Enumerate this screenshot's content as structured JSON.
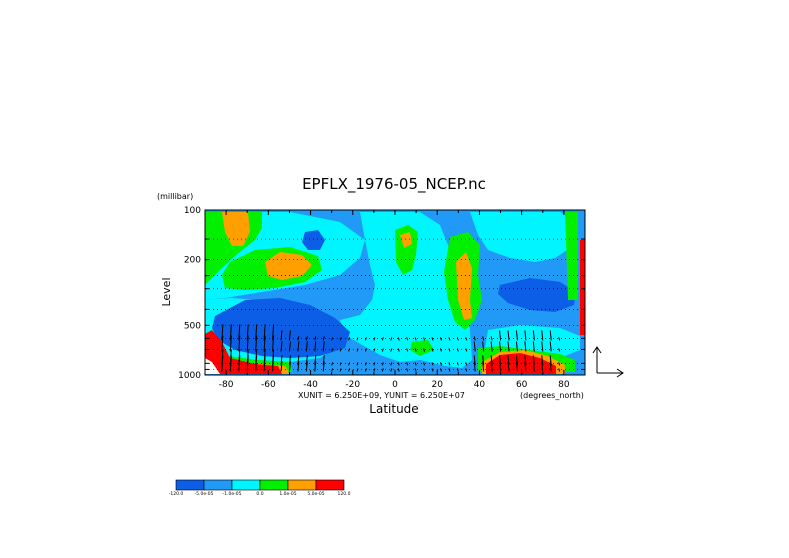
{
  "chart_data": {
    "type": "heatmap",
    "title": "EPFLX_1976-05_NCEP.nc",
    "ylabel": "Level",
    "yunit": "(millibar)",
    "xlabel": "Latitude",
    "xunit": "(degrees_north)",
    "vector_scale_label": "XUNIT = 6.250E+09, YUNIT = 6.250E+07",
    "x_ticks": [
      -80,
      -60,
      -40,
      -20,
      0,
      20,
      40,
      60,
      80
    ],
    "y_ticks": [
      100,
      200,
      500,
      1000
    ],
    "y_scale": "log",
    "y_reversed": true,
    "xlim": [
      -90,
      90
    ],
    "ylim": [
      1000,
      100
    ],
    "grid": true,
    "levels_dotted": [
      100,
      150,
      200,
      250,
      300,
      400,
      500,
      600,
      700,
      850,
      925,
      1000
    ],
    "colorbar": {
      "labels": [
        "-120.0",
        "-5.0e-05",
        "-1.0e-05",
        "0.0",
        "1.0e-05",
        "5.0e-05",
        "120.0"
      ],
      "colors": [
        "#0b5ee5",
        "#2199f6",
        "#00f5ff",
        "#00f000",
        "#ffa000",
        "#ff0000"
      ]
    }
  }
}
